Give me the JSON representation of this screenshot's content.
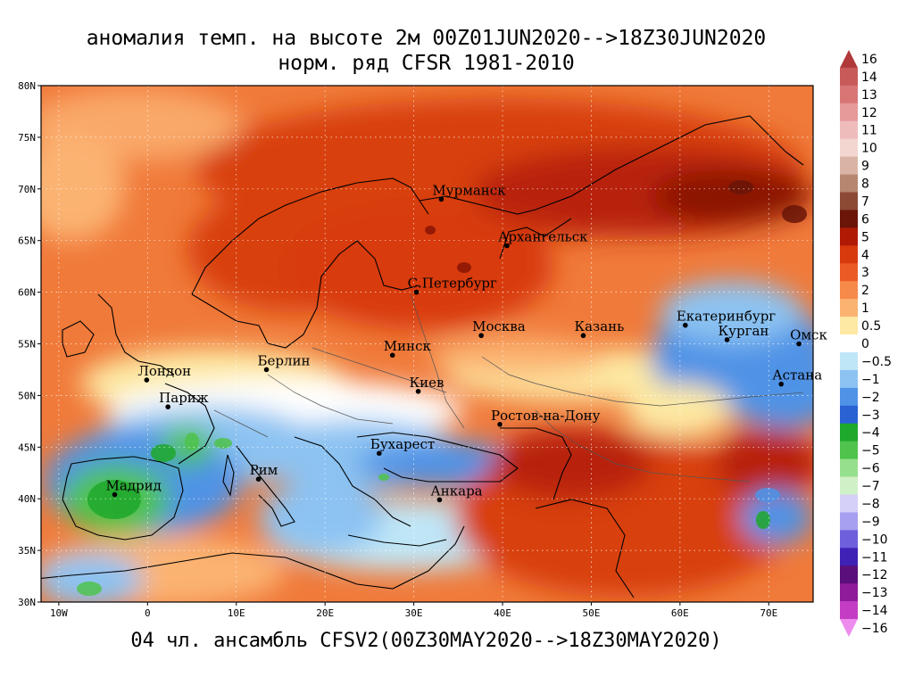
{
  "title_line1": "аномалия темп. на высоте 2м 00Z01JUN2020-->18Z30JUN2020",
  "title_line2": "норм. ряд CFSR 1981-2010",
  "footer": "04 чл. ансамбль CFSV2(00Z30MAY2020-->18Z30MAY2020)",
  "chart_data": {
    "type": "heatmap",
    "lat_range": [
      30,
      80
    ],
    "lon_range": [
      -12,
      75
    ],
    "lat_ticks": [
      "80N",
      "75N",
      "70N",
      "65N",
      "60N",
      "55N",
      "50N",
      "45N",
      "40N",
      "35N",
      "30N"
    ],
    "lon_ticks": [
      {
        "label": "10W",
        "lon": -10
      },
      {
        "label": "0",
        "lon": 0
      },
      {
        "label": "10E",
        "lon": 10
      },
      {
        "label": "20E",
        "lon": 20
      },
      {
        "label": "30E",
        "lon": 30
      },
      {
        "label": "40E",
        "lon": 40
      },
      {
        "label": "50E",
        "lon": 50
      },
      {
        "label": "60E",
        "lon": 60
      },
      {
        "label": "70E",
        "lon": 70
      }
    ],
    "cities": [
      {
        "name": "Мурманск",
        "lon": 33.1,
        "lat": 69.0
      },
      {
        "name": "Архангельск",
        "lon": 40.5,
        "lat": 64.5
      },
      {
        "name": "С.Петербург",
        "lon": 30.3,
        "lat": 60.0
      },
      {
        "name": "Москва",
        "lon": 37.6,
        "lat": 55.8
      },
      {
        "name": "Казань",
        "lon": 49.1,
        "lat": 55.8
      },
      {
        "name": "Екатеринбург",
        "lon": 60.6,
        "lat": 56.8
      },
      {
        "name": "Курган",
        "lon": 65.3,
        "lat": 55.4
      },
      {
        "name": "Омск",
        "lon": 73.4,
        "lat": 55.0
      },
      {
        "name": "Астана",
        "lon": 71.4,
        "lat": 51.1
      },
      {
        "name": "Минск",
        "lon": 27.6,
        "lat": 53.9
      },
      {
        "name": "Берлин",
        "lon": 13.4,
        "lat": 52.5
      },
      {
        "name": "Лондон",
        "lon": -0.1,
        "lat": 51.5
      },
      {
        "name": "Париж",
        "lon": 2.3,
        "lat": 48.9
      },
      {
        "name": "Киев",
        "lon": 30.5,
        "lat": 50.4
      },
      {
        "name": "Ростов-на-Дону",
        "lon": 39.7,
        "lat": 47.2
      },
      {
        "name": "Бухарест",
        "lon": 26.1,
        "lat": 44.4
      },
      {
        "name": "Рим",
        "lon": 12.5,
        "lat": 41.9
      },
      {
        "name": "Мадрид",
        "lon": -3.7,
        "lat": 40.4
      },
      {
        "name": "Анкара",
        "lon": 32.9,
        "lat": 39.9
      }
    ],
    "colorbar": [
      {
        "label": "16",
        "color": "#b03a3a"
      },
      {
        "label": "14",
        "color": "#c85a5a"
      },
      {
        "label": "13",
        "color": "#d87676"
      },
      {
        "label": "12",
        "color": "#e69a9a"
      },
      {
        "label": "11",
        "color": "#efbcbc"
      },
      {
        "label": "10",
        "color": "#f2d6cf"
      },
      {
        "label": "9",
        "color": "#d9b4a5"
      },
      {
        "label": "8",
        "color": "#b78670"
      },
      {
        "label": "7",
        "color": "#8c4a34"
      },
      {
        "label": "6",
        "color": "#6a1508"
      },
      {
        "label": "5",
        "color": "#b01a05"
      },
      {
        "label": "4",
        "color": "#d83a0e"
      },
      {
        "label": "3",
        "color": "#ea5a24"
      },
      {
        "label": "2",
        "color": "#f68a4a"
      },
      {
        "label": "1",
        "color": "#fbb372"
      },
      {
        "label": "0.5",
        "color": "#fde9a3"
      },
      {
        "label": "0",
        "color": "#ffffff"
      },
      {
        "label": "−0.5",
        "color": "#bfe6f7"
      },
      {
        "label": "−1",
        "color": "#8cc3f2"
      },
      {
        "label": "−2",
        "color": "#4f93e6"
      },
      {
        "label": "−3",
        "color": "#2a62d4"
      },
      {
        "label": "−4",
        "color": "#1ea82c"
      },
      {
        "label": "−5",
        "color": "#4fc34c"
      },
      {
        "label": "−6",
        "color": "#96df8c"
      },
      {
        "label": "−7",
        "color": "#d0f0c8"
      },
      {
        "label": "−8",
        "color": "#d4d0f7"
      },
      {
        "label": "−9",
        "color": "#a79ff0"
      },
      {
        "label": "−10",
        "color": "#6e5fdc"
      },
      {
        "label": "−11",
        "color": "#3f22b5"
      },
      {
        "label": "−12",
        "color": "#5a0f7a"
      },
      {
        "label": "−13",
        "color": "#8f1a9a"
      },
      {
        "label": "−14",
        "color": "#c43cc4"
      },
      {
        "label": "−16",
        "color": "#ee8cee"
      }
    ]
  }
}
